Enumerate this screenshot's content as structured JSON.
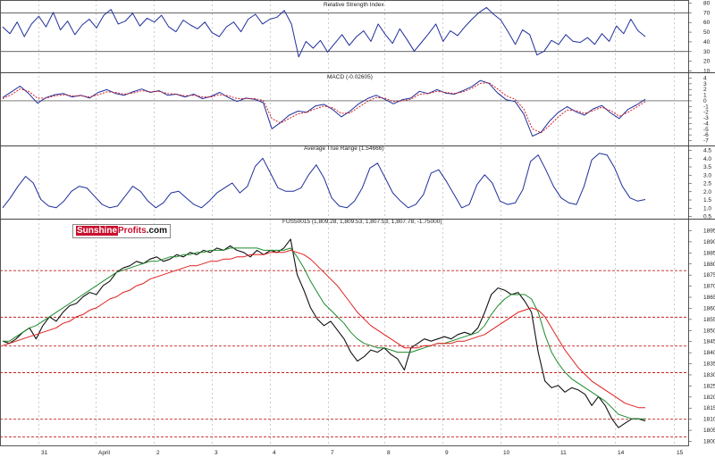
{
  "brand": {
    "part1": "Sunshine",
    "part2": "Profits",
    "part3": ".com"
  },
  "x_axis": {
    "ticks": [
      "31",
      "April",
      "2",
      "3",
      "4",
      "7",
      "8",
      "9",
      "10",
      "11",
      "14",
      "15"
    ]
  },
  "colors": {
    "indicator": "#1f2f9a",
    "signal": "#d0202a",
    "price": "#111111",
    "ma_short": "#1c8a2c",
    "ma_long": "#e01f1f",
    "level_line": "#c22020",
    "grid": "#aaaaaa"
  },
  "chart_data": [
    {
      "type": "line",
      "title": "Relative Strength Index",
      "ylim": [
        10,
        80
      ],
      "yticks": [
        "80",
        "70",
        "60",
        "50",
        "40",
        "30",
        "20",
        "10"
      ],
      "reference_lines": [
        70,
        30
      ],
      "series": [
        {
          "values": [
            55,
            48,
            60,
            45,
            58,
            66,
            55,
            70,
            52,
            61,
            47,
            57,
            63,
            54,
            67,
            73,
            58,
            61,
            69,
            56,
            64,
            60,
            67,
            55,
            50,
            62,
            57,
            53,
            60,
            49,
            45,
            55,
            60,
            50,
            63,
            68,
            58,
            63,
            65,
            72,
            58,
            24,
            40,
            33,
            41,
            29,
            38,
            47,
            36,
            45,
            51,
            40,
            58,
            47,
            38,
            53,
            42,
            30,
            39,
            48,
            58,
            40,
            51,
            46,
            55,
            63,
            70,
            75,
            68,
            62,
            50,
            37,
            52,
            47,
            26,
            30,
            41,
            37,
            47,
            40,
            39,
            44,
            37,
            48,
            40,
            56,
            48,
            63,
            51,
            45
          ]
        }
      ]
    },
    {
      "type": "line",
      "title": "MACD (-0.02605)",
      "ylim": [
        -7,
        4
      ],
      "yticks": [
        "4",
        "3",
        "2",
        "1",
        "0",
        "-1",
        "-2",
        "-3",
        "-4",
        "-5",
        "-6",
        "-7"
      ],
      "reference_lines": [
        0
      ],
      "series": [
        {
          "values": [
            0.5,
            1.5,
            2.5,
            1.2,
            -0.5,
            0.5,
            1.0,
            1.2,
            0.6,
            0.9,
            0.4,
            1.4,
            1.9,
            1.2,
            0.9,
            1.5,
            2.0,
            1.4,
            1.7,
            0.9,
            1.1,
            0.6,
            1.1,
            0.3,
            0.7,
            1.4,
            0.5,
            -0.2,
            0.4,
            0.2,
            -0.4,
            -5.0,
            -3.9,
            -2.6,
            -1.9,
            -2.1,
            -1.0,
            -0.7,
            -1.6,
            -2.9,
            -1.9,
            -0.6,
            0.3,
            0.9,
            0.2,
            -0.6,
            0.1,
            0.4,
            1.6,
            1.2,
            1.9,
            1.3,
            1.1,
            1.7,
            2.4,
            3.5,
            3.0,
            1.3,
            0.1,
            -0.2,
            -2.4,
            -6.3,
            -5.6,
            -3.6,
            -2.1,
            -1.1,
            -2.0,
            -2.6,
            -1.5,
            -0.9,
            -2.2,
            -3.2,
            -1.6,
            -0.8,
            0.2
          ]
        },
        {
          "values": [
            0.3,
            1.0,
            2.0,
            1.6,
            0.4,
            0.4,
            0.8,
            1.0,
            0.8,
            0.8,
            0.6,
            1.0,
            1.5,
            1.4,
            1.1,
            1.3,
            1.7,
            1.5,
            1.6,
            1.2,
            1.1,
            0.8,
            0.9,
            0.6,
            0.6,
            1.0,
            0.8,
            0.3,
            0.3,
            0.3,
            0.0,
            -3.2,
            -4.0,
            -3.2,
            -2.4,
            -2.1,
            -1.5,
            -1.0,
            -1.3,
            -2.3,
            -2.2,
            -1.2,
            -0.2,
            0.5,
            0.4,
            -0.2,
            -0.1,
            0.2,
            1.1,
            1.2,
            1.6,
            1.4,
            1.2,
            1.5,
            2.1,
            3.0,
            3.1,
            2.0,
            0.8,
            0.2,
            -1.5,
            -5.0,
            -5.7,
            -4.4,
            -2.9,
            -1.7,
            -1.8,
            -2.3,
            -1.8,
            -1.2,
            -1.8,
            -2.8,
            -2.1,
            -1.2,
            -0.2
          ]
        }
      ]
    },
    {
      "type": "line",
      "title": "Average True Range (1.54666)",
      "ylim": [
        0.5,
        4.5
      ],
      "yticks": [
        "4.5",
        "4.0",
        "3.5",
        "3.0",
        "2.5",
        "2.0",
        "1.5",
        "1.0",
        "0.5"
      ],
      "series": [
        {
          "values": [
            1.0,
            1.6,
            2.3,
            2.9,
            2.5,
            1.5,
            1.1,
            1.0,
            1.4,
            2.0,
            2.3,
            2.2,
            1.7,
            1.2,
            1.0,
            1.1,
            1.7,
            2.3,
            2.0,
            1.4,
            1.0,
            1.3,
            1.9,
            2.0,
            1.6,
            1.2,
            1.0,
            1.4,
            1.9,
            2.2,
            2.5,
            1.9,
            2.3,
            3.5,
            4.0,
            3.1,
            2.2,
            2.0,
            2.0,
            2.2,
            3.0,
            3.6,
            2.8,
            1.6,
            1.1,
            1.0,
            1.4,
            2.2,
            3.4,
            3.7,
            2.8,
            1.9,
            1.4,
            1.0,
            1.2,
            1.8,
            3.1,
            3.3,
            2.6,
            1.8,
            1.0,
            1.2,
            2.4,
            3.0,
            2.5,
            1.4,
            1.2,
            1.3,
            2.1,
            3.8,
            4.2,
            3.3,
            2.3,
            1.6,
            1.3,
            1.2,
            2.3,
            3.9,
            4.3,
            4.2,
            3.4,
            2.3,
            1.6,
            1.4,
            1.5
          ]
        }
      ]
    },
    {
      "type": "line",
      "title": "FUS50015 (1,809.28, 1,809.53, 1,807.53, 1,807.78, -1.75000)",
      "ylim": [
        1800,
        1895
      ],
      "yticks": [
        "1895",
        "1890",
        "1885",
        "1880",
        "1875",
        "1870",
        "1865",
        "1860",
        "1855",
        "1850",
        "1845",
        "1840",
        "1835",
        "1830",
        "1825",
        "1820",
        "1815",
        "1810",
        "1805",
        "1800"
      ],
      "reference_lines": [
        1877,
        1856,
        1843,
        1831,
        1810,
        1802
      ],
      "series": [
        {
          "values": [
            1845,
            1844,
            1846,
            1849,
            1851,
            1846,
            1852,
            1856,
            1854,
            1858,
            1861,
            1862,
            1865,
            1867,
            1866,
            1870,
            1872,
            1876,
            1878,
            1879,
            1881,
            1880,
            1882,
            1883,
            1881,
            1882,
            1884,
            1883,
            1885,
            1884,
            1886,
            1885,
            1887,
            1886,
            1888,
            1886,
            1885,
            1883,
            1886,
            1884,
            1886,
            1885,
            1887,
            1891,
            1875,
            1868,
            1860,
            1855,
            1852,
            1854,
            1850,
            1846,
            1840,
            1836,
            1838,
            1841,
            1840,
            1842,
            1839,
            1837,
            1832,
            1842,
            1844,
            1846,
            1845,
            1846,
            1847,
            1846,
            1848,
            1849,
            1848,
            1851,
            1858,
            1866,
            1869,
            1868,
            1866,
            1867,
            1863,
            1858,
            1840,
            1827,
            1824,
            1825,
            1822,
            1824,
            1823,
            1821,
            1816,
            1820,
            1816,
            1810,
            1806,
            1808,
            1810,
            1810,
            1809
          ]
        },
        {
          "values": [
            1845,
            1845,
            1847,
            1849,
            1851,
            1852,
            1854,
            1856,
            1858,
            1860,
            1862,
            1864,
            1866,
            1868,
            1870,
            1872,
            1874,
            1876,
            1877,
            1878,
            1879,
            1880,
            1881,
            1881,
            1882,
            1883,
            1883,
            1884,
            1884,
            1885,
            1885,
            1886,
            1886,
            1886,
            1887,
            1887,
            1887,
            1887,
            1887,
            1886,
            1886,
            1886,
            1886,
            1887,
            1883,
            1878,
            1872,
            1867,
            1862,
            1859,
            1856,
            1853,
            1849,
            1846,
            1844,
            1843,
            1842,
            1842,
            1841,
            1840,
            1840,
            1840,
            1841,
            1842,
            1843,
            1844,
            1844,
            1845,
            1846,
            1847,
            1848,
            1849,
            1852,
            1857,
            1861,
            1864,
            1866,
            1866,
            1866,
            1864,
            1858,
            1848,
            1840,
            1835,
            1831,
            1828,
            1826,
            1824,
            1822,
            1820,
            1818,
            1815,
            1812,
            1811,
            1810,
            1810,
            1810
          ]
        },
        {
          "values": [
            1843,
            1844,
            1845,
            1846,
            1847,
            1848,
            1849,
            1850,
            1851,
            1853,
            1854,
            1856,
            1857,
            1859,
            1860,
            1862,
            1864,
            1865,
            1867,
            1868,
            1870,
            1871,
            1873,
            1874,
            1875,
            1876,
            1877,
            1878,
            1879,
            1879,
            1880,
            1881,
            1881,
            1882,
            1882,
            1883,
            1883,
            1884,
            1884,
            1884,
            1885,
            1885,
            1885,
            1886,
            1885,
            1884,
            1882,
            1879,
            1876,
            1873,
            1870,
            1866,
            1862,
            1858,
            1855,
            1852,
            1850,
            1848,
            1846,
            1844,
            1842,
            1842,
            1842,
            1843,
            1843,
            1844,
            1844,
            1844,
            1845,
            1845,
            1846,
            1847,
            1848,
            1850,
            1852,
            1854,
            1856,
            1858,
            1859,
            1860,
            1859,
            1856,
            1851,
            1846,
            1841,
            1837,
            1833,
            1830,
            1827,
            1825,
            1823,
            1821,
            1819,
            1817,
            1816,
            1815,
            1815
          ]
        }
      ]
    }
  ]
}
